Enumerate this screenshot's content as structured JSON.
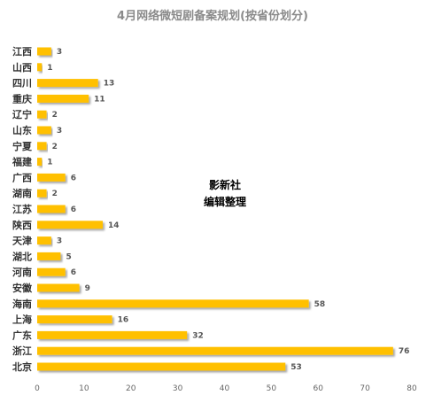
{
  "chart_data": {
    "type": "bar",
    "orientation": "horizontal",
    "title": "4月网络微短剧备案规划(按省份划分)",
    "categories": [
      "江西",
      "山西",
      "四川",
      "重庆",
      "辽宁",
      "山东",
      "宁夏",
      "福建",
      "广西",
      "湖南",
      "江苏",
      "陕西",
      "天津",
      "湖北",
      "河南",
      "安徽",
      "海南",
      "上海",
      "广东",
      "浙江",
      "北京"
    ],
    "values": [
      3,
      1,
      13,
      11,
      2,
      3,
      2,
      1,
      6,
      2,
      6,
      14,
      3,
      5,
      6,
      9,
      58,
      16,
      32,
      76,
      53
    ],
    "xlim": [
      0,
      80
    ],
    "x_ticks": [
      "0",
      "10",
      "20",
      "30",
      "40",
      "50",
      "60",
      "70",
      "80"
    ],
    "grid": false,
    "bar_color": "#FFC000",
    "annotation": [
      "影新社",
      "编辑整理"
    ]
  }
}
